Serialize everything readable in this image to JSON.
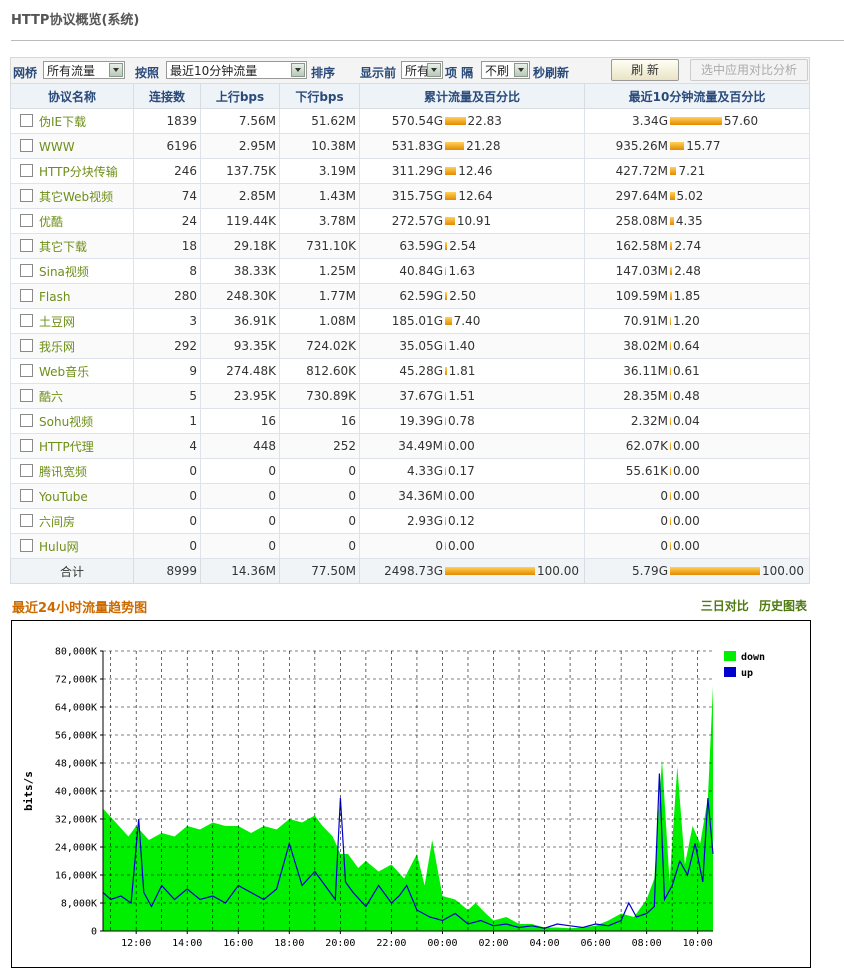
{
  "page": {
    "title": "HTTP协议概览(系统)"
  },
  "toolbar": {
    "bridge_label": "网桥",
    "bridge_value": "所有流量",
    "sort_by_label": "按照",
    "sort_by_value": "最近10分钟流量",
    "sort_label": "排序",
    "show_top_label": "显示前",
    "show_top_value": "所有",
    "items_label": "项 隔",
    "refresh_interval_value": "不刷",
    "refresh_suffix": "秒刷新",
    "refresh_button": "刷 新",
    "compare_button": "选中应用对比分析"
  },
  "table": {
    "headers": [
      "协议名称",
      "连接数",
      "上行bps",
      "下行bps",
      "累计流量及百分比",
      "最近10分钟流量及百分比"
    ],
    "rows": [
      {
        "name": "伪IE下载",
        "conn": "1839",
        "up": "7.56M",
        "down": "51.62M",
        "total": "570.54G",
        "total_pct": "22.83",
        "recent": "3.34G",
        "recent_pct": "57.60"
      },
      {
        "name": "WWW",
        "conn": "6196",
        "up": "2.95M",
        "down": "10.38M",
        "total": "531.83G",
        "total_pct": "21.28",
        "recent": "935.26M",
        "recent_pct": "15.77"
      },
      {
        "name": "HTTP分块传输",
        "conn": "246",
        "up": "137.75K",
        "down": "3.19M",
        "total": "311.29G",
        "total_pct": "12.46",
        "recent": "427.72M",
        "recent_pct": "7.21"
      },
      {
        "name": "其它Web视频",
        "conn": "74",
        "up": "2.85M",
        "down": "1.43M",
        "total": "315.75G",
        "total_pct": "12.64",
        "recent": "297.64M",
        "recent_pct": "5.02"
      },
      {
        "name": "优酷",
        "conn": "24",
        "up": "119.44K",
        "down": "3.78M",
        "total": "272.57G",
        "total_pct": "10.91",
        "recent": "258.08M",
        "recent_pct": "4.35"
      },
      {
        "name": "其它下载",
        "conn": "18",
        "up": "29.18K",
        "down": "731.10K",
        "total": "63.59G",
        "total_pct": "2.54",
        "recent": "162.58M",
        "recent_pct": "2.74"
      },
      {
        "name": "Sina视频",
        "conn": "8",
        "up": "38.33K",
        "down": "1.25M",
        "total": "40.84G",
        "total_pct": "1.63",
        "recent": "147.03M",
        "recent_pct": "2.48"
      },
      {
        "name": "Flash",
        "conn": "280",
        "up": "248.30K",
        "down": "1.77M",
        "total": "62.59G",
        "total_pct": "2.50",
        "recent": "109.59M",
        "recent_pct": "1.85"
      },
      {
        "name": "土豆网",
        "conn": "3",
        "up": "36.91K",
        "down": "1.08M",
        "total": "185.01G",
        "total_pct": "7.40",
        "recent": "70.91M",
        "recent_pct": "1.20"
      },
      {
        "name": "我乐网",
        "conn": "292",
        "up": "93.35K",
        "down": "724.02K",
        "total": "35.05G",
        "total_pct": "1.40",
        "recent": "38.02M",
        "recent_pct": "0.64"
      },
      {
        "name": "Web音乐",
        "conn": "9",
        "up": "274.48K",
        "down": "812.60K",
        "total": "45.28G",
        "total_pct": "1.81",
        "recent": "36.11M",
        "recent_pct": "0.61"
      },
      {
        "name": "酷六",
        "conn": "5",
        "up": "23.95K",
        "down": "730.89K",
        "total": "37.67G",
        "total_pct": "1.51",
        "recent": "28.35M",
        "recent_pct": "0.48"
      },
      {
        "name": "Sohu视频",
        "conn": "1",
        "up": "16",
        "down": "16",
        "total": "19.39G",
        "total_pct": "0.78",
        "recent": "2.32M",
        "recent_pct": "0.04"
      },
      {
        "name": "HTTP代理",
        "conn": "4",
        "up": "448",
        "down": "252",
        "total": "34.49M",
        "total_pct": "0.00",
        "recent": "62.07K",
        "recent_pct": "0.00"
      },
      {
        "name": "腾讯宽频",
        "conn": "0",
        "up": "0",
        "down": "0",
        "total": "4.33G",
        "total_pct": "0.17",
        "recent": "55.61K",
        "recent_pct": "0.00"
      },
      {
        "name": "YouTube",
        "conn": "0",
        "up": "0",
        "down": "0",
        "total": "34.36M",
        "total_pct": "0.00",
        "recent": "0",
        "recent_pct": "0.00"
      },
      {
        "name": "六间房",
        "conn": "0",
        "up": "0",
        "down": "0",
        "total": "2.93G",
        "total_pct": "0.12",
        "recent": "0",
        "recent_pct": "0.00"
      },
      {
        "name": "Hulu网",
        "conn": "0",
        "up": "0",
        "down": "0",
        "total": "0",
        "total_pct": "0.00",
        "recent": "0",
        "recent_pct": "0.00"
      }
    ],
    "footer": {
      "label": "合计",
      "conn": "8999",
      "up": "14.36M",
      "down": "77.50M",
      "total": "2498.73G",
      "total_pct": "100.00",
      "recent": "5.79G",
      "recent_pct": "100.00"
    }
  },
  "chart_section": {
    "title": "最近24小时流量趋势图",
    "link_compare": "三日对比",
    "link_history": "历史图表"
  },
  "chart_data": {
    "type": "area",
    "ylabel": "bits/s",
    "ylim": [
      0,
      80000
    ],
    "yticks": [
      "0",
      "8,000K",
      "16,000K",
      "24,000K",
      "32,000K",
      "40,000K",
      "48,000K",
      "56,000K",
      "64,000K",
      "72,000K",
      "80,000K"
    ],
    "xticks": [
      "12:00",
      "14:00",
      "16:00",
      "18:00",
      "20:00",
      "22:00",
      "00:00",
      "02:00",
      "04:00",
      "06:00",
      "08:00",
      "10:00"
    ],
    "xlim_hours": [
      10.7,
      34.6
    ],
    "grid": true,
    "legend_position": "top-right",
    "colors": {
      "down": "#00ee00",
      "up": "#0000cc"
    },
    "series": [
      {
        "name": "down",
        "x": [
          10.7,
          11.2,
          11.7,
          12.0,
          12.5,
          13.0,
          13.5,
          14.0,
          14.5,
          15.0,
          15.5,
          16.0,
          16.5,
          17.0,
          17.5,
          18.0,
          18.5,
          19.0,
          19.3,
          19.7,
          20.0,
          20.3,
          20.7,
          21.0,
          21.5,
          22.0,
          22.5,
          23.0,
          23.3,
          23.6,
          24.0,
          24.5,
          25.0,
          25.3,
          25.7,
          26.0,
          26.5,
          27.0,
          27.5,
          28.0,
          28.5,
          29.0,
          29.5,
          30.0,
          30.5,
          31.0,
          31.5,
          32.0,
          32.3,
          32.6,
          32.9,
          33.2,
          33.5,
          33.8,
          34.1,
          34.4,
          34.6
        ],
        "y": [
          35000,
          31000,
          27000,
          30000,
          26000,
          28000,
          27000,
          30000,
          29000,
          31000,
          30000,
          30000,
          28000,
          30000,
          29000,
          32000,
          31000,
          33000,
          30000,
          27000,
          22000,
          22000,
          18000,
          20000,
          17000,
          19000,
          15000,
          22000,
          13000,
          26000,
          10000,
          9000,
          6000,
          8000,
          5000,
          3000,
          4000,
          2000,
          2000,
          1000,
          1000,
          800,
          1000,
          1500,
          3000,
          5000,
          4000,
          9000,
          15000,
          49000,
          14000,
          47000,
          19000,
          30000,
          25000,
          38000,
          70000
        ]
      },
      {
        "name": "up",
        "x": [
          10.7,
          11.0,
          11.4,
          11.8,
          12.1,
          12.3,
          12.6,
          13.0,
          13.5,
          14.0,
          14.5,
          15.0,
          15.5,
          16.0,
          16.5,
          17.0,
          17.5,
          18.0,
          18.5,
          19.0,
          19.5,
          19.8,
          20.0,
          20.2,
          20.5,
          21.0,
          21.5,
          22.0,
          22.3,
          22.6,
          23.0,
          23.5,
          24.0,
          24.5,
          25.0,
          25.5,
          26.0,
          26.5,
          27.0,
          27.5,
          28.0,
          28.5,
          29.0,
          29.5,
          30.0,
          30.5,
          31.0,
          31.3,
          31.6,
          32.0,
          32.3,
          32.5,
          32.7,
          33.0,
          33.3,
          33.6,
          33.9,
          34.2,
          34.4,
          34.6
        ],
        "y": [
          11000,
          9000,
          10000,
          8000,
          32000,
          11000,
          7000,
          13000,
          9000,
          12000,
          9000,
          10000,
          8000,
          13000,
          11000,
          9000,
          12000,
          25000,
          13000,
          17000,
          12000,
          9000,
          38000,
          14000,
          11000,
          7000,
          13000,
          8000,
          10000,
          13000,
          6000,
          4000,
          3000,
          5000,
          2000,
          3000,
          1500,
          2000,
          1000,
          1500,
          800,
          2000,
          1500,
          1000,
          2000,
          1500,
          3000,
          8000,
          4000,
          5000,
          7000,
          45000,
          9000,
          13000,
          20000,
          16000,
          25000,
          14000,
          38000,
          22000
        ]
      }
    ]
  }
}
